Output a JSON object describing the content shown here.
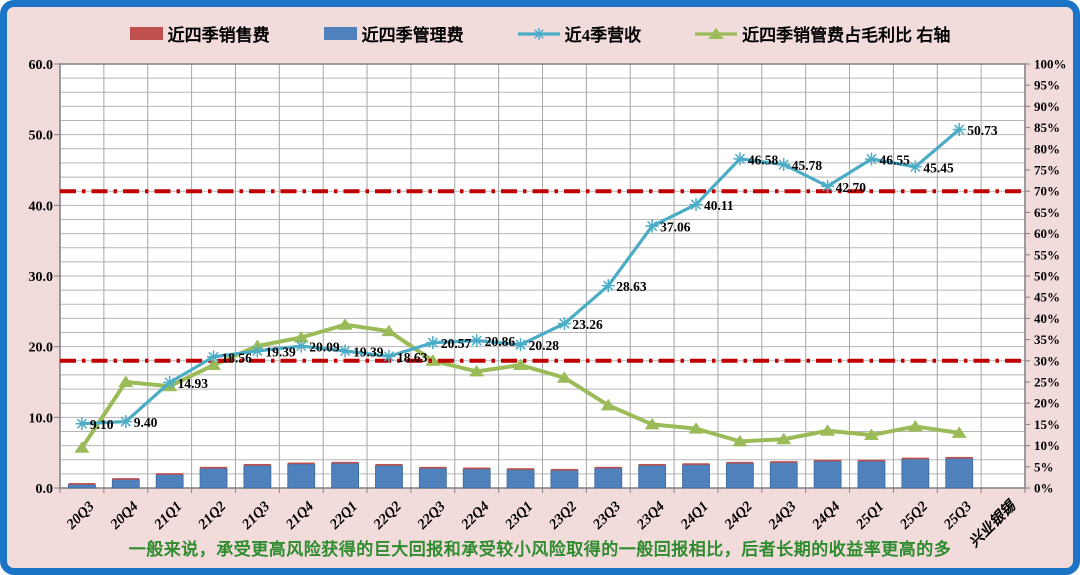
{
  "window": {
    "background_color": "#f2dcdb",
    "border_color": "#1b74c5",
    "plot_background": "#ffffff"
  },
  "legend": {
    "items": [
      {
        "label": "近四季销售费",
        "swatch": "bar",
        "color": "#c0504d"
      },
      {
        "label": "近四季管理费",
        "swatch": "bar",
        "color": "#4f81bd"
      },
      {
        "label": "近4季营收",
        "swatch": "line-asterisk",
        "color": "#4bacc6"
      },
      {
        "label": "近四季销管费占毛利比 右轴",
        "swatch": "line-triangle",
        "color": "#9bbb59"
      }
    ]
  },
  "caption": "一般来说，承受更高风险获得的巨大回报和承受较小风险取得的一般回报相比，后者长期的收益率更高的多",
  "chart_data": {
    "type": "combo",
    "categories": [
      "20Q3",
      "20Q4",
      "21Q1",
      "21Q2",
      "21Q3",
      "21Q4",
      "22Q1",
      "22Q2",
      "22Q3",
      "22Q4",
      "23Q1",
      "23Q2",
      "23Q3",
      "23Q4",
      "24Q1",
      "24Q2",
      "24Q3",
      "24Q4",
      "25Q1",
      "25Q2",
      "25Q3"
    ],
    "extra_category": "兴业银锡",
    "left_axis": {
      "min": 0,
      "max": 60,
      "label_step": 10,
      "grid_step": 2,
      "labels": [
        "0.0",
        "10.0",
        "20.0",
        "30.0",
        "40.0",
        "50.0",
        "60.0"
      ]
    },
    "right_axis": {
      "min": 0,
      "max": 100,
      "label_step": 5,
      "labels": [
        "0%",
        "5%",
        "10%",
        "15%",
        "20%",
        "25%",
        "30%",
        "35%",
        "40%",
        "45%",
        "50%",
        "55%",
        "60%",
        "65%",
        "70%",
        "75%",
        "80%",
        "85%",
        "90%",
        "95%",
        "100%"
      ]
    },
    "series": [
      {
        "name": "近四季销售费",
        "type": "bar",
        "stack": "expenses",
        "axis": "left",
        "color": "#c0504d",
        "values": [
          0.2,
          0.2,
          0.2,
          0.2,
          0.2,
          0.2,
          0.2,
          0.2,
          0.2,
          0.2,
          0.2,
          0.2,
          0.2,
          0.2,
          0.2,
          0.2,
          0.2,
          0.2,
          0.2,
          0.2,
          0.2
        ]
      },
      {
        "name": "近四季管理费",
        "type": "bar",
        "stack": "expenses",
        "axis": "left",
        "color": "#4f81bd",
        "values": [
          0.5,
          1.2,
          1.9,
          2.8,
          3.2,
          3.4,
          3.5,
          3.2,
          2.8,
          2.7,
          2.6,
          2.5,
          2.8,
          3.2,
          3.3,
          3.5,
          3.6,
          3.8,
          3.8,
          4.1,
          4.2
        ]
      },
      {
        "name": "近4季营收",
        "type": "line",
        "marker": "asterisk",
        "axis": "left",
        "color": "#4bacc6",
        "values": [
          9.1,
          9.4,
          14.93,
          18.56,
          19.39,
          20.09,
          19.39,
          18.63,
          20.57,
          20.86,
          20.28,
          23.26,
          28.63,
          37.06,
          40.11,
          46.58,
          45.78,
          42.7,
          46.55,
          45.45,
          50.73
        ],
        "data_labels": [
          "9.10",
          "9.40",
          "14.93",
          "18.56",
          "19.39",
          "20.09",
          "19.39",
          "18.63",
          "20.57",
          "20.86",
          "20.28",
          "23.26",
          "28.63",
          "37.06",
          "40.11",
          "46.58",
          "45.78",
          "42.70",
          "46.55",
          "45.45",
          "50.73"
        ]
      },
      {
        "name": "近四季销管费占毛利比",
        "type": "line",
        "marker": "triangle",
        "axis": "right",
        "color": "#9bbb59",
        "values": [
          9.5,
          25,
          24,
          29,
          33.5,
          35.5,
          38.5,
          37,
          30,
          27.5,
          29,
          26,
          19.5,
          15,
          14,
          11,
          11.5,
          13.5,
          12.5,
          14.5,
          13
        ]
      }
    ],
    "reference_lines": [
      {
        "axis": "right",
        "value": 70,
        "color": "#c00000",
        "style": "dash-dot"
      },
      {
        "axis": "right",
        "value": 30,
        "color": "#c00000",
        "style": "dash-dot"
      }
    ],
    "grid": {
      "horizontal": true,
      "vertical": "category-boundaries",
      "color": "#b5b5b5"
    }
  }
}
